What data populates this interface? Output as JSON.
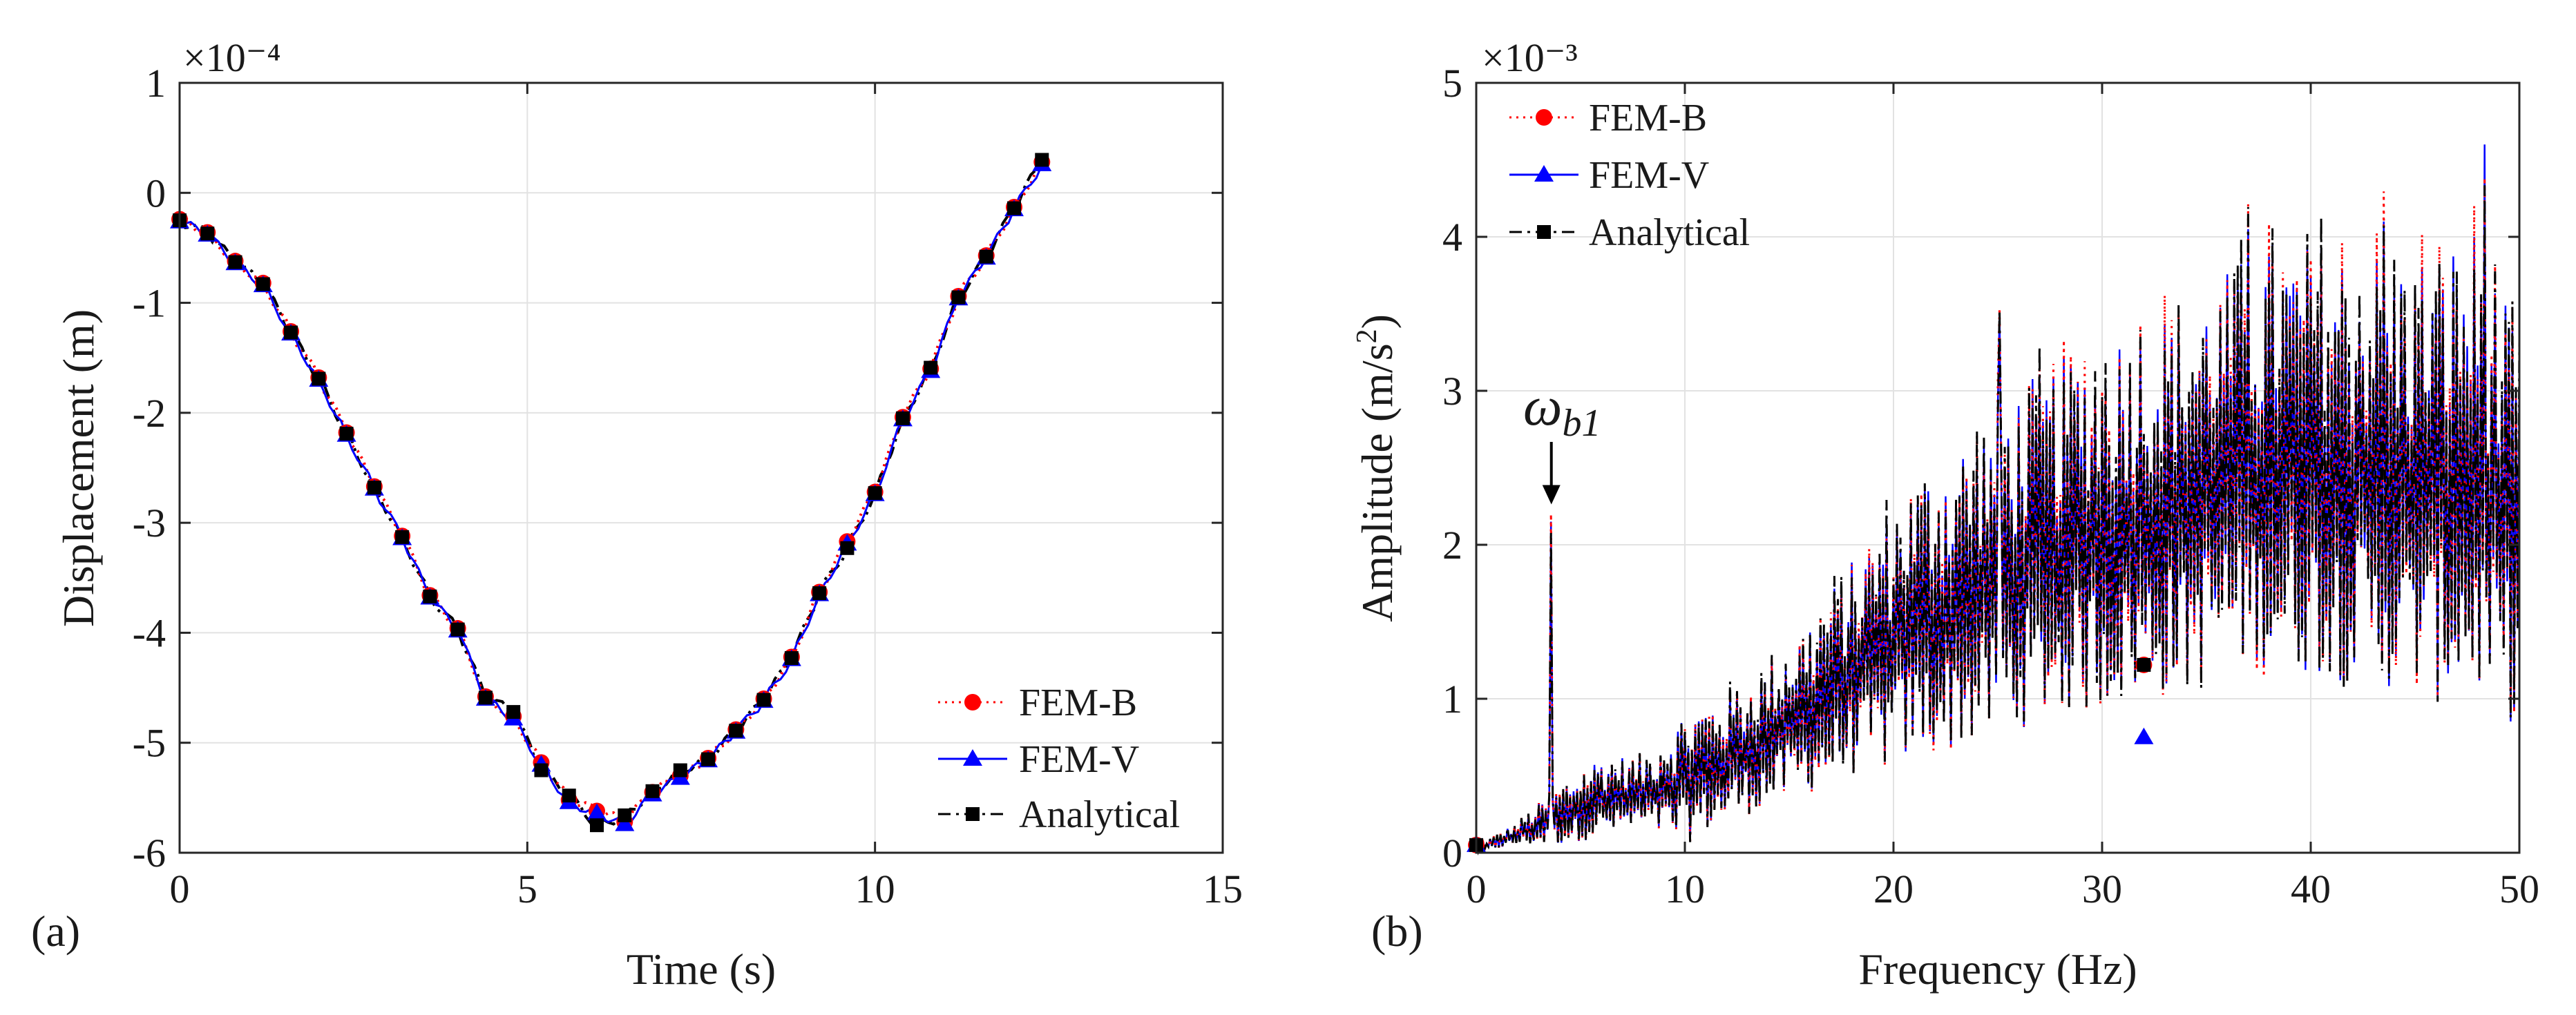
{
  "colors": {
    "fem_b": "#ff0000",
    "fem_v": "#0000ff",
    "analytical": "#000000",
    "axis": "#262626",
    "grid": "#e2e2e2"
  },
  "chart_data": [
    {
      "panel": "(a)",
      "type": "line",
      "title": "",
      "xlabel": "Time (s)",
      "ylabel": "Displacement (m)",
      "y_exponent": "×10⁻⁴",
      "xlim": [
        0,
        15
      ],
      "ylim": [
        -6,
        1
      ],
      "xticks": [
        0,
        5,
        10,
        15
      ],
      "yticks": [
        -6,
        -5,
        -4,
        -3,
        -2,
        -1,
        0,
        1
      ],
      "grid": true,
      "legend_position": "bottom-right",
      "series": [
        {
          "name": "FEM-B",
          "style": "dotted",
          "marker": "circle",
          "color": "#ff0000",
          "x": [
            0,
            0.4,
            0.8,
            1.2,
            1.6,
            2.0,
            2.4,
            2.8,
            3.2,
            3.6,
            4.0,
            4.4,
            4.8,
            5.2,
            5.6,
            6.0,
            6.4,
            6.8,
            7.2,
            7.6,
            8.0,
            8.4,
            8.8,
            9.2,
            9.6,
            10.0,
            10.4,
            10.8,
            11.2,
            11.6,
            12.0,
            12.4
          ],
          "y": [
            -0.24,
            -0.36,
            -0.62,
            -0.82,
            -1.26,
            -1.68,
            -2.18,
            -2.67,
            -3.12,
            -3.66,
            -3.96,
            -4.58,
            -4.76,
            -5.18,
            -5.52,
            -5.62,
            -5.72,
            -5.45,
            -5.3,
            -5.14,
            -4.88,
            -4.6,
            -4.22,
            -3.63,
            -3.17,
            -2.72,
            -2.04,
            -1.6,
            -0.94,
            -0.57,
            -0.13,
            0.28
          ]
        },
        {
          "name": "FEM-V",
          "style": "solid",
          "marker": "triangle",
          "color": "#0000ff",
          "x": [
            0,
            0.4,
            0.8,
            1.2,
            1.6,
            2.0,
            2.4,
            2.8,
            3.2,
            3.6,
            4.0,
            4.4,
            4.8,
            5.2,
            5.6,
            6.0,
            6.4,
            6.8,
            7.2,
            7.6,
            8.0,
            8.4,
            8.8,
            9.2,
            9.6,
            10.0,
            10.4,
            10.8,
            11.2,
            11.6,
            12.0,
            12.4
          ],
          "y": [
            -0.26,
            -0.38,
            -0.64,
            -0.84,
            -1.28,
            -1.7,
            -2.2,
            -2.69,
            -3.14,
            -3.68,
            -3.98,
            -4.6,
            -4.78,
            -5.2,
            -5.54,
            -5.64,
            -5.74,
            -5.47,
            -5.32,
            -5.16,
            -4.9,
            -4.62,
            -4.24,
            -3.65,
            -3.19,
            -2.74,
            -2.06,
            -1.62,
            -0.96,
            -0.59,
            -0.15,
            0.26
          ]
        },
        {
          "name": "Analytical",
          "style": "dashdot",
          "marker": "square",
          "color": "#000000",
          "x": [
            0,
            0.4,
            0.8,
            1.2,
            1.6,
            2.0,
            2.4,
            2.8,
            3.2,
            3.6,
            4.0,
            4.4,
            4.8,
            5.2,
            5.6,
            6.0,
            6.4,
            6.8,
            7.2,
            7.6,
            8.0,
            8.4,
            8.8,
            9.2,
            9.6,
            10.0,
            10.4,
            10.8,
            11.2,
            11.6,
            12.0,
            12.4
          ],
          "y": [
            -0.25,
            -0.37,
            -0.63,
            -0.83,
            -1.27,
            -1.69,
            -2.19,
            -2.68,
            -3.13,
            -3.67,
            -3.97,
            -4.59,
            -4.72,
            -5.25,
            -5.48,
            -5.75,
            -5.66,
            -5.44,
            -5.25,
            -5.15,
            -4.89,
            -4.61,
            -4.23,
            -3.64,
            -3.23,
            -2.73,
            -2.05,
            -1.59,
            -0.95,
            -0.58,
            -0.14,
            0.3
          ]
        }
      ]
    },
    {
      "panel": "(b)",
      "type": "line",
      "title": "",
      "xlabel": "Frequency (Hz)",
      "ylabel_main": "Amplitude (m/s",
      "ylabel_sup": "2",
      "ylabel_end": ")",
      "y_exponent": "×10⁻³",
      "xlim": [
        0,
        50
      ],
      "ylim": [
        0,
        5
      ],
      "xticks": [
        0,
        10,
        20,
        30,
        40,
        50
      ],
      "yticks": [
        0,
        1,
        2,
        3,
        4,
        5
      ],
      "grid": true,
      "legend_position": "top-left",
      "annotation": {
        "symbol": "ω",
        "subscript": "b1",
        "x": 3.6,
        "y": 2.15
      },
      "series": [
        {
          "name": "FEM-B",
          "style": "dotted",
          "marker": "circle",
          "color": "#ff0000",
          "marker_x": [
            0,
            32
          ],
          "marker_y": [
            0.05,
            1.22
          ]
        },
        {
          "name": "FEM-V",
          "style": "solid",
          "marker": "triangle",
          "color": "#0000ff",
          "marker_x": [
            0,
            32
          ],
          "marker_y": [
            0.05,
            0.75
          ]
        },
        {
          "name": "Analytical",
          "style": "dashdot",
          "marker": "square",
          "color": "#000000",
          "marker_x": [
            0,
            32
          ],
          "marker_y": [
            0.05,
            1.22
          ]
        }
      ],
      "envelope": {
        "x": [
          0,
          2,
          4,
          6,
          8,
          10,
          12,
          14,
          16,
          18,
          20,
          22,
          24,
          26,
          28,
          30,
          32,
          34,
          36,
          38,
          40,
          42,
          44,
          46,
          48,
          50
        ],
        "peak": [
          0.05,
          0.2,
          0.45,
          0.65,
          0.62,
          0.95,
          1.05,
          1.25,
          1.55,
          1.9,
          2.3,
          2.6,
          2.8,
          3.05,
          3.2,
          3.4,
          3.5,
          3.6,
          3.8,
          4.0,
          4.0,
          4.0,
          3.95,
          3.95,
          4.1,
          3.3
        ],
        "trough": [
          0.0,
          0.05,
          0.05,
          0.1,
          0.15,
          0.05,
          0.2,
          0.3,
          0.4,
          0.5,
          0.55,
          0.65,
          0.7,
          0.8,
          0.9,
          0.95,
          1.0,
          1.05,
          1.2,
          1.2,
          1.15,
          1.1,
          1.05,
          1.0,
          1.0,
          0.8
        ]
      },
      "highlight_peaks": [
        {
          "x": 3.6,
          "y": 2.15
        },
        {
          "x": 25.1,
          "y": 3.5
        },
        {
          "x": 37.0,
          "y": 4.05
        },
        {
          "x": 43.5,
          "y": 4.1
        },
        {
          "x": 48.3,
          "y": 4.6
        }
      ]
    }
  ]
}
